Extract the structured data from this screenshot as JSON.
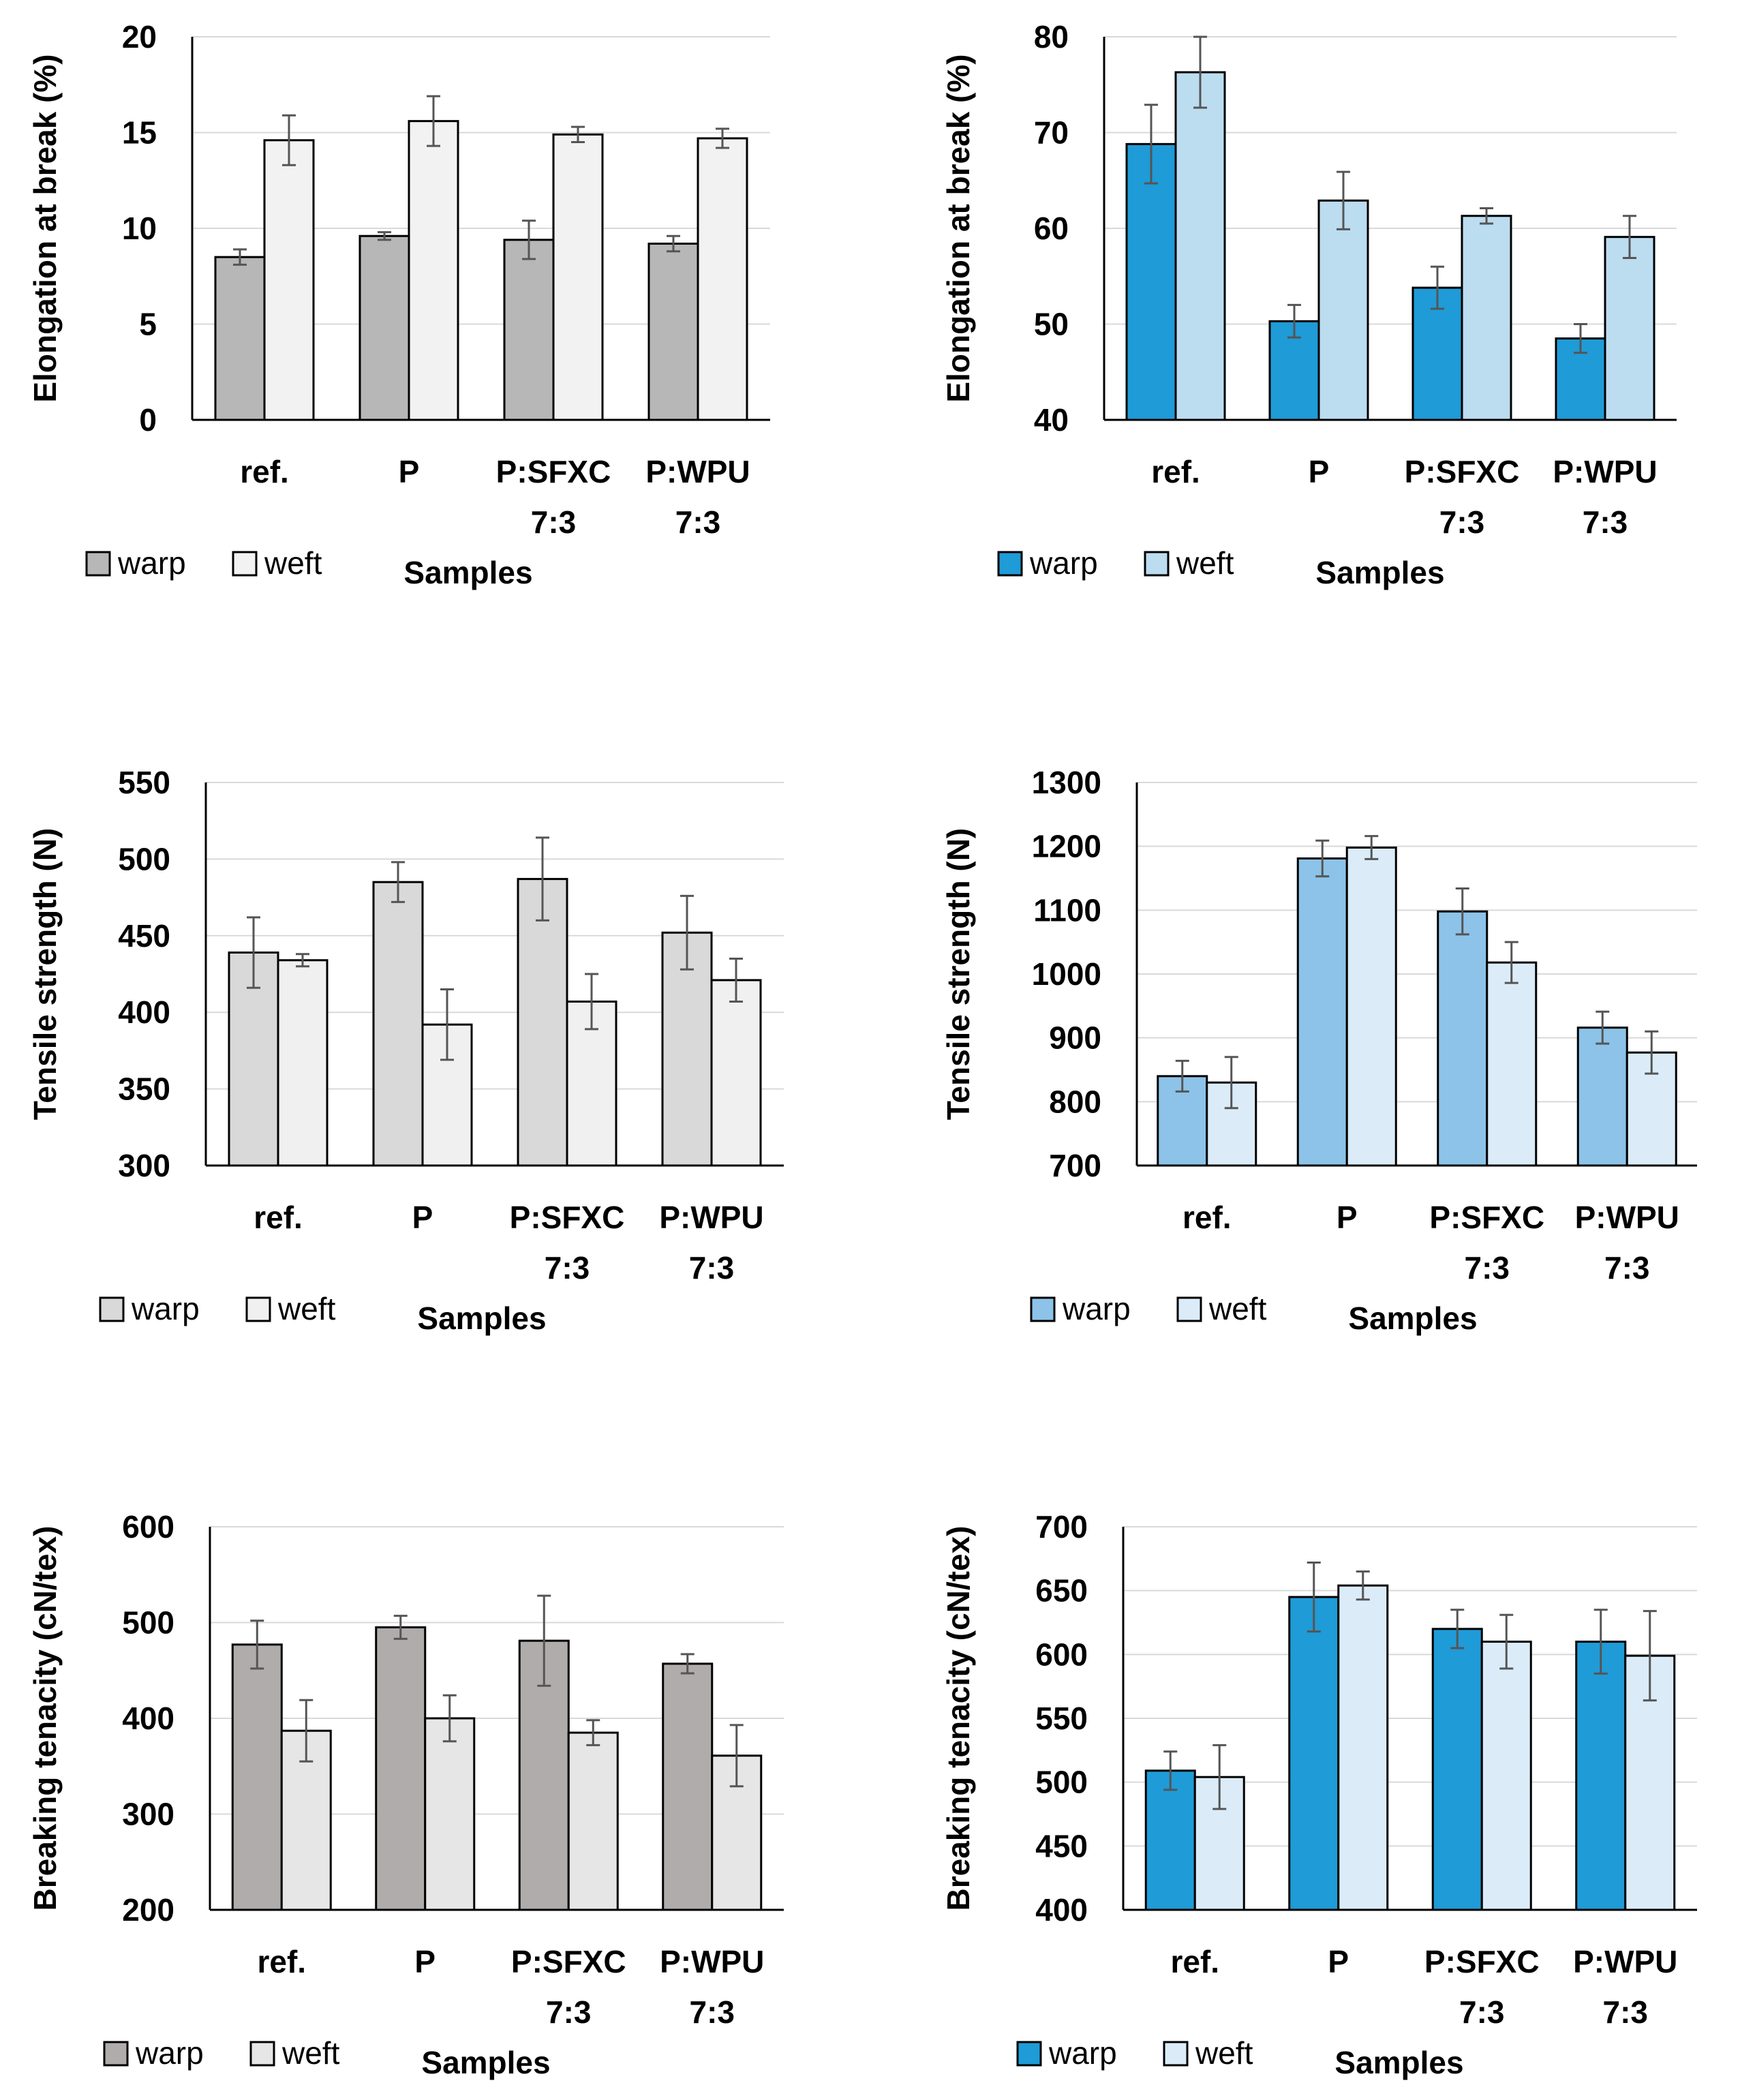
{
  "chart_data": [
    {
      "type": "bar",
      "ylabel": "Elongation at break (%)",
      "xlabel": "Samples",
      "ylim": [
        0,
        20
      ],
      "yticks": [
        0,
        5,
        10,
        15,
        20
      ],
      "categories": [
        [
          "ref."
        ],
        [
          "P"
        ],
        [
          "P:SFXC",
          "7:3"
        ],
        [
          "P:WPU",
          "7:3"
        ]
      ],
      "legend": "bottom-left",
      "series": [
        {
          "name": "warp",
          "color": "#b7b7b7",
          "values": [
            8.5,
            9.6,
            9.4,
            9.2
          ],
          "errors": [
            0.4,
            0.2,
            1.0,
            0.4
          ]
        },
        {
          "name": "weft",
          "color": "#f2f2f2",
          "values": [
            14.6,
            15.6,
            14.9,
            14.7
          ],
          "errors": [
            1.3,
            1.3,
            0.4,
            0.5
          ]
        }
      ]
    },
    {
      "type": "bar",
      "ylabel": "Elongation at break (%)",
      "xlabel": "Samples",
      "ylim": [
        40,
        80
      ],
      "yticks": [
        40,
        50,
        60,
        70,
        80
      ],
      "categories": [
        [
          "ref."
        ],
        [
          "P"
        ],
        [
          "P:SFXC",
          "7:3"
        ],
        [
          "P:WPU",
          "7:3"
        ]
      ],
      "legend": "bottom-left",
      "series": [
        {
          "name": "warp",
          "color": "#1f9bd7",
          "values": [
            68.8,
            50.3,
            53.8,
            48.5
          ],
          "errors": [
            4.1,
            1.7,
            2.2,
            1.5
          ]
        },
        {
          "name": "weft",
          "color": "#bcdcf0",
          "values": [
            76.3,
            62.9,
            61.3,
            59.1
          ],
          "errors": [
            3.7,
            3.0,
            0.8,
            2.2
          ]
        }
      ]
    },
    {
      "type": "bar",
      "ylabel": "Tensile strength (N)",
      "xlabel": "Samples",
      "ylim": [
        300,
        550
      ],
      "yticks": [
        300,
        350,
        400,
        450,
        500,
        550
      ],
      "categories": [
        [
          "ref."
        ],
        [
          "P"
        ],
        [
          "P:SFXC",
          "7:3"
        ],
        [
          "P:WPU",
          "7:3"
        ]
      ],
      "legend": "bottom-left",
      "series": [
        {
          "name": "warp",
          "color": "#d9d9d9",
          "values": [
            439,
            485,
            487,
            452
          ],
          "errors": [
            23,
            13,
            27,
            24
          ]
        },
        {
          "name": "weft",
          "color": "#f0f0f0",
          "values": [
            434,
            392,
            407,
            421
          ],
          "errors": [
            4,
            23,
            18,
            14
          ]
        }
      ]
    },
    {
      "type": "bar",
      "ylabel": "Tensile strength (N)",
      "xlabel": "Samples",
      "ylim": [
        700,
        1300
      ],
      "yticks": [
        700,
        800,
        900,
        1000,
        1100,
        1200,
        1300
      ],
      "categories": [
        [
          "ref."
        ],
        [
          "P"
        ],
        [
          "P:SFXC",
          "7:3"
        ],
        [
          "P:WPU",
          "7:3"
        ]
      ],
      "legend": "bottom-left",
      "series": [
        {
          "name": "warp",
          "color": "#8dc3e8",
          "values": [
            840,
            1181,
            1098,
            916
          ],
          "errors": [
            24,
            28,
            36,
            25
          ]
        },
        {
          "name": "weft",
          "color": "#dbecf8",
          "values": [
            830,
            1198,
            1018,
            877
          ],
          "errors": [
            40,
            18,
            32,
            33
          ]
        }
      ]
    },
    {
      "type": "bar",
      "ylabel": "Breaking tenacity (cN/tex)",
      "xlabel": "Samples",
      "ylim": [
        200,
        600
      ],
      "yticks": [
        200,
        300,
        400,
        500,
        600
      ],
      "categories": [
        [
          "ref."
        ],
        [
          "P"
        ],
        [
          "P:SFXC",
          "7:3"
        ],
        [
          "P:WPU",
          "7:3"
        ]
      ],
      "legend": "bottom-left",
      "series": [
        {
          "name": "warp",
          "color": "#b0acab",
          "values": [
            477,
            495,
            481,
            457
          ],
          "errors": [
            25,
            12,
            47,
            10
          ]
        },
        {
          "name": "weft",
          "color": "#e6e6e6",
          "values": [
            387,
            400,
            385,
            361
          ],
          "errors": [
            32,
            24,
            13,
            32
          ]
        }
      ]
    },
    {
      "type": "bar",
      "ylabel": "Breaking tenacity (cN/tex)",
      "xlabel": "Samples",
      "ylim": [
        400,
        700
      ],
      "yticks": [
        400,
        450,
        500,
        550,
        600,
        650,
        700
      ],
      "categories": [
        [
          "ref."
        ],
        [
          "P"
        ],
        [
          "P:SFXC",
          "7:3"
        ],
        [
          "P:WPU",
          "7:3"
        ]
      ],
      "legend": "bottom-left",
      "series": [
        {
          "name": "warp",
          "color": "#1f9bd7",
          "values": [
            509,
            645,
            620,
            610
          ],
          "errors": [
            15,
            27,
            15,
            25
          ]
        },
        {
          "name": "weft",
          "color": "#dbecf8",
          "values": [
            504,
            654,
            610,
            599
          ],
          "errors": [
            25,
            11,
            21,
            35
          ]
        }
      ]
    }
  ]
}
